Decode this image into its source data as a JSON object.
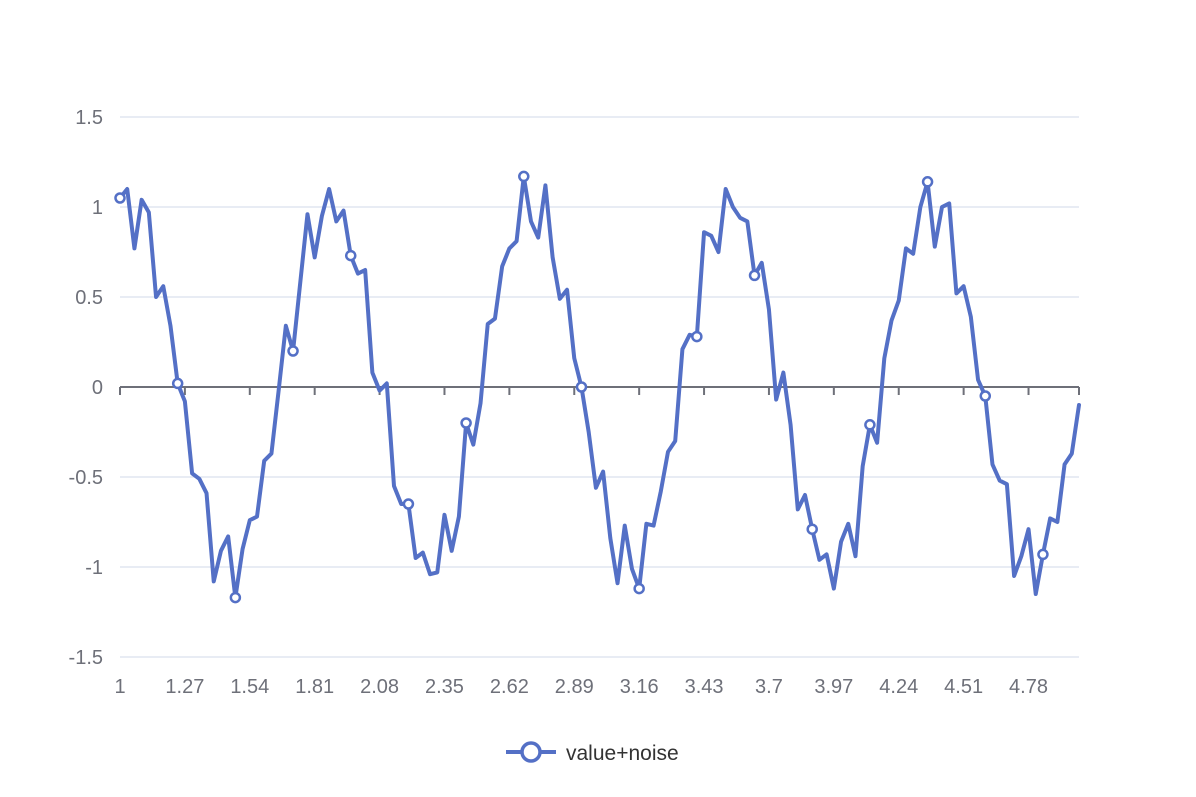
{
  "chart_data": {
    "type": "line",
    "title": "",
    "xlabel": "",
    "ylabel": "",
    "x_axis_labels": [
      "1",
      "1.27",
      "1.54",
      "1.81",
      "2.08",
      "2.35",
      "2.62",
      "2.89",
      "3.16",
      "3.43",
      "3.7",
      "3.97",
      "4.24",
      "4.51",
      "4.78"
    ],
    "y_axis_labels": [
      "1.5",
      "1",
      "0.5",
      "0",
      "-0.5",
      "-1",
      "-1.5"
    ],
    "ylim": [
      -1.5,
      1.5
    ],
    "xlim": [
      1,
      4.99
    ],
    "grid": true,
    "legend_position": "bottom-center",
    "series": [
      {
        "name": "value+noise",
        "color": "#5470c6",
        "x": [
          1.0,
          1.03,
          1.06,
          1.09,
          1.12,
          1.15,
          1.18,
          1.21,
          1.24,
          1.27,
          1.3,
          1.33,
          1.36,
          1.39,
          1.42,
          1.45,
          1.48,
          1.51,
          1.54,
          1.57,
          1.6,
          1.63,
          1.66,
          1.69,
          1.72,
          1.75,
          1.78,
          1.81,
          1.84,
          1.87,
          1.9,
          1.93,
          1.96,
          1.99,
          2.02,
          2.05,
          2.08,
          2.11,
          2.14,
          2.17,
          2.2,
          2.23,
          2.26,
          2.29,
          2.32,
          2.35,
          2.38,
          2.41,
          2.44,
          2.47,
          2.5,
          2.53,
          2.56,
          2.59,
          2.62,
          2.65,
          2.68,
          2.71,
          2.74,
          2.77,
          2.8,
          2.83,
          2.86,
          2.89,
          2.92,
          2.95,
          2.98,
          3.01,
          3.04,
          3.07,
          3.1,
          3.13,
          3.16,
          3.19,
          3.22,
          3.25,
          3.28,
          3.31,
          3.34,
          3.37,
          3.4,
          3.43,
          3.46,
          3.49,
          3.52,
          3.55,
          3.58,
          3.61,
          3.64,
          3.67,
          3.7,
          3.73,
          3.76,
          3.79,
          3.82,
          3.85,
          3.88,
          3.91,
          3.94,
          3.97,
          4.0,
          4.03,
          4.06,
          4.09,
          4.12,
          4.15,
          4.18,
          4.21,
          4.24,
          4.27,
          4.3,
          4.33,
          4.36,
          4.39,
          4.42,
          4.45,
          4.48,
          4.51,
          4.54,
          4.57,
          4.6,
          4.63,
          4.66,
          4.69,
          4.72,
          4.75,
          4.78,
          4.81,
          4.84,
          4.87,
          4.9,
          4.93,
          4.96,
          4.99
        ],
        "y": [
          1.05,
          1.1,
          0.77,
          1.04,
          0.97,
          0.5,
          0.56,
          0.34,
          0.02,
          -0.08,
          -0.48,
          -0.51,
          -0.59,
          -1.08,
          -0.91,
          -0.83,
          -1.17,
          -0.9,
          -0.74,
          -0.72,
          -0.41,
          -0.37,
          -0.02,
          0.34,
          0.2,
          0.58,
          0.96,
          0.72,
          0.95,
          1.1,
          0.92,
          0.98,
          0.73,
          0.63,
          0.65,
          0.08,
          -0.02,
          0.02,
          -0.55,
          -0.65,
          -0.65,
          -0.95,
          -0.92,
          -1.04,
          -1.03,
          -0.71,
          -0.91,
          -0.72,
          -0.2,
          -0.32,
          -0.09,
          0.35,
          0.38,
          0.67,
          0.77,
          0.81,
          1.17,
          0.92,
          0.83,
          1.12,
          0.72,
          0.49,
          0.54,
          0.16,
          0.0,
          -0.25,
          -0.56,
          -0.47,
          -0.84,
          -1.09,
          -0.77,
          -1.01,
          -1.12,
          -0.76,
          -0.77,
          -0.58,
          -0.36,
          -0.3,
          0.21,
          0.29,
          0.28,
          0.86,
          0.84,
          0.75,
          1.1,
          1.0,
          0.94,
          0.92,
          0.62,
          0.69,
          0.43,
          -0.07,
          0.08,
          -0.21,
          -0.68,
          -0.6,
          -0.79,
          -0.96,
          -0.93,
          -1.12,
          -0.86,
          -0.76,
          -0.94,
          -0.44,
          -0.21,
          -0.31,
          0.16,
          0.37,
          0.48,
          0.77,
          0.74,
          1.0,
          1.14,
          0.78,
          1.0,
          1.02,
          0.52,
          0.56,
          0.39,
          0.04,
          -0.05,
          -0.43,
          -0.52,
          -0.54,
          -1.05,
          -0.94,
          -0.79,
          -1.15,
          -0.93,
          -0.73,
          -0.75,
          -0.43,
          -0.37,
          -0.1
        ],
        "symbol_every": 8
      }
    ]
  }
}
